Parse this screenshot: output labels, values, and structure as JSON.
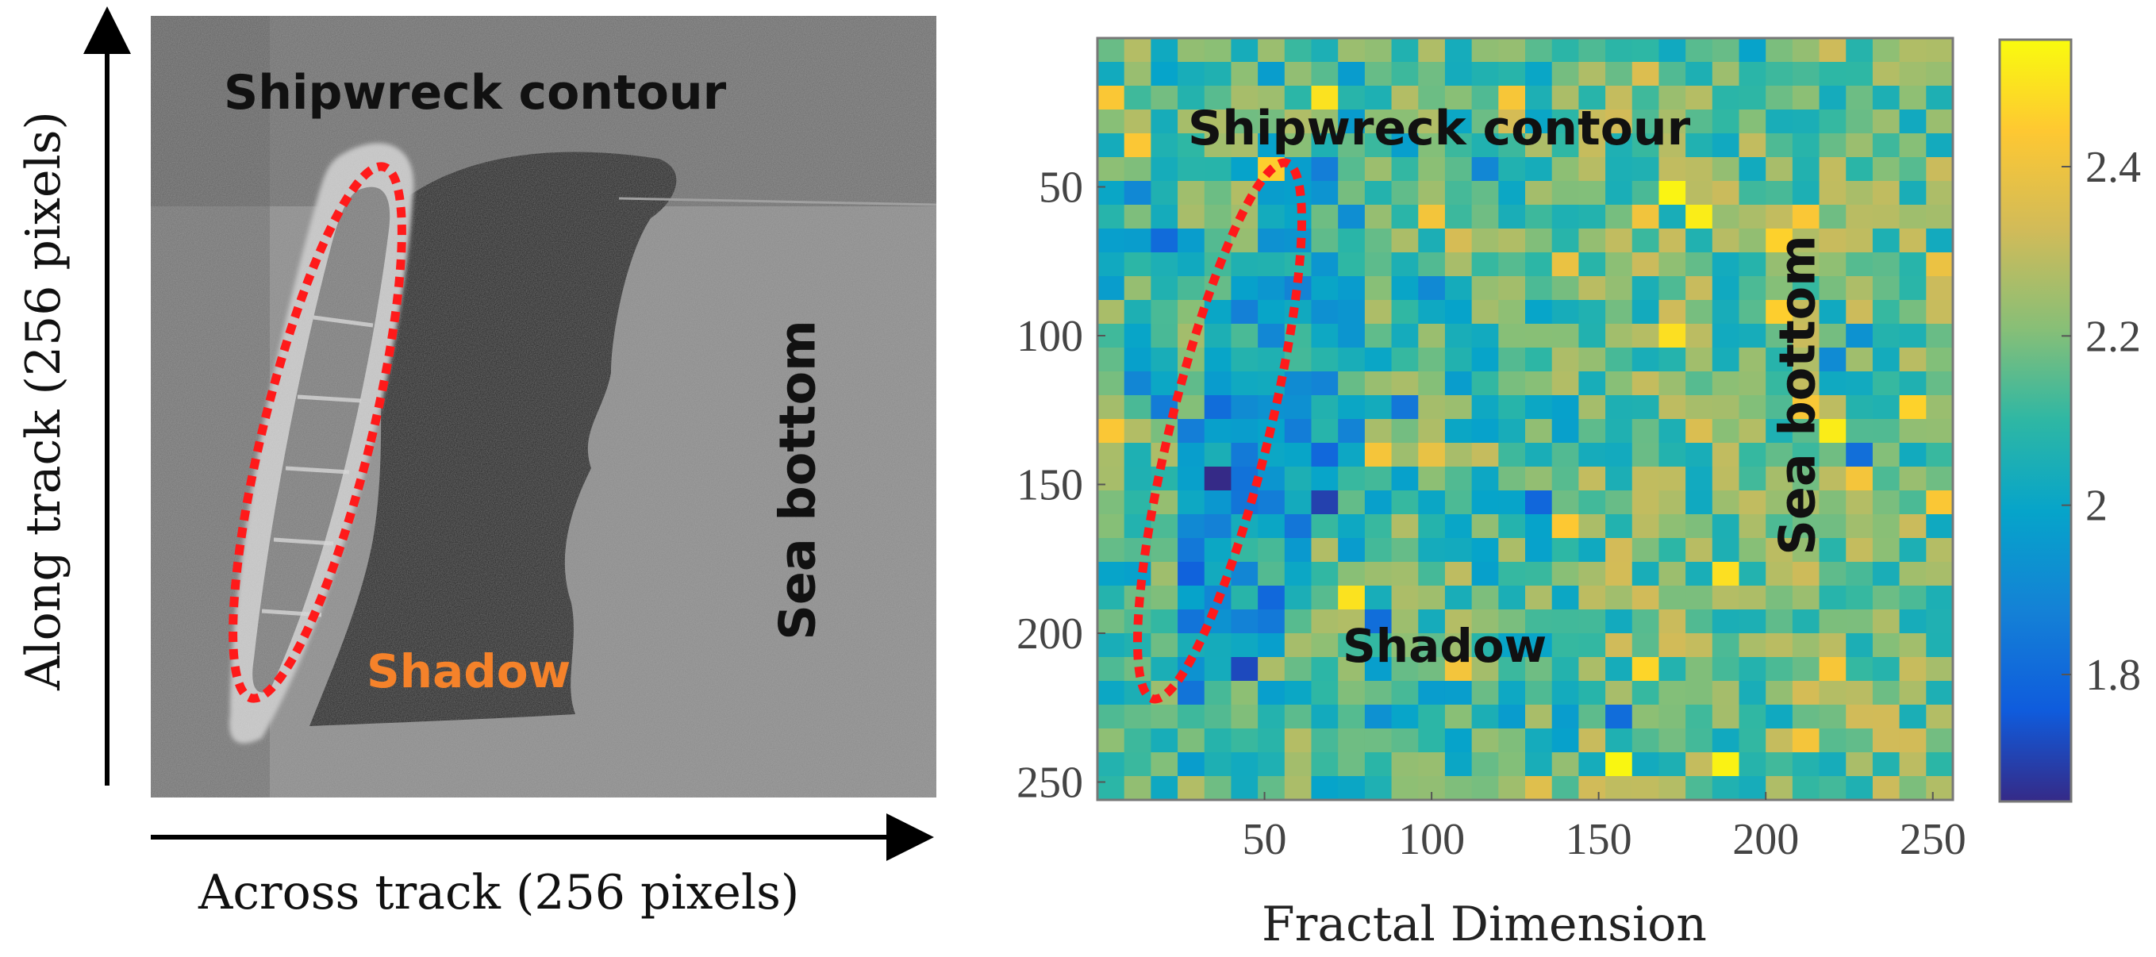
{
  "left_panel": {
    "title_label": "Shipwreck contour",
    "shadow_label": "Shadow",
    "sea_bottom_label": "Sea bottom",
    "x_axis_label": "Across track (256 pixels)",
    "y_axis_label": "Along track (256 pixels)",
    "shadow_color": "#f5822a",
    "ellipse_color": "#ff1a1a"
  },
  "right_panel": {
    "title_label": "Shipwreck contour",
    "shadow_label": "Shadow",
    "sea_bottom_label": "Sea bottom",
    "x_axis_label": "Fractal Dimension",
    "ellipse_color": "#ff1a1a"
  },
  "chart_data": {
    "type": "heatmap",
    "title": "",
    "xlabel": "Fractal Dimension",
    "ylabel": "",
    "x_ticks": [
      50,
      100,
      150,
      200,
      250
    ],
    "y_ticks": [
      50,
      100,
      150,
      200,
      250
    ],
    "xlim": [
      0,
      256
    ],
    "ylim": [
      0,
      256
    ],
    "grid_size": 32,
    "colorbar": {
      "ticks": [
        1.8,
        2,
        2.2,
        2.4
      ],
      "tick_labels": [
        "1.8",
        "2",
        "2.2",
        "2.4"
      ],
      "range": [
        1.65,
        2.55
      ],
      "colormap": "parula"
    },
    "annotations": [
      "Shipwreck contour",
      "Shadow",
      "Sea bottom"
    ]
  }
}
